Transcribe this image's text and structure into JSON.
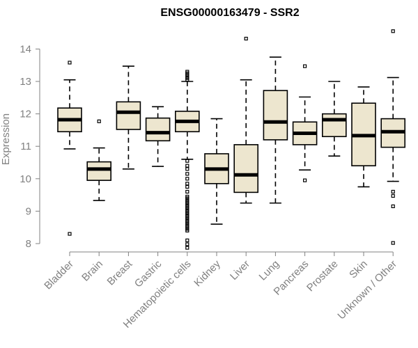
{
  "chart_data": {
    "type": "boxplot",
    "title": "ENSG00000163479 - SSR2",
    "xlabel": "",
    "ylabel": "Expression",
    "ylim": [
      7.8,
      14.7
    ],
    "yticks": [
      8,
      9,
      10,
      11,
      12,
      13,
      14
    ],
    "grid": false,
    "box_fill": "#ede6cf",
    "categories": [
      "Bladder",
      "Brain",
      "Breast",
      "Gastric",
      "Hematopoietic cells",
      "Kidney",
      "Liver",
      "Lung",
      "Pancreas",
      "Prostate",
      "Skin",
      "Unknown / Other"
    ],
    "boxes": [
      {
        "whisker_low": 10.92,
        "q1": 11.45,
        "median": 11.82,
        "q3": 12.18,
        "whisker_high": 13.05,
        "outliers": [
          13.58,
          8.3
        ]
      },
      {
        "whisker_low": 9.33,
        "q1": 9.95,
        "median": 10.3,
        "q3": 10.52,
        "whisker_high": 10.95,
        "outliers": [
          11.77
        ]
      },
      {
        "whisker_low": 10.3,
        "q1": 11.52,
        "median": 12.05,
        "q3": 12.37,
        "whisker_high": 13.47,
        "outliers": []
      },
      {
        "whisker_low": 10.38,
        "q1": 11.17,
        "median": 11.42,
        "q3": 11.87,
        "whisker_high": 12.22,
        "outliers": []
      },
      {
        "whisker_low": 10.6,
        "q1": 11.45,
        "median": 11.77,
        "q3": 12.08,
        "whisker_high": 13.0,
        "outliers": [
          13.3,
          13.25,
          13.2,
          13.15,
          13.1,
          13.05,
          10.55,
          10.4,
          10.3,
          10.15,
          10.0,
          9.85,
          9.75,
          9.6,
          9.45,
          9.4,
          9.35,
          9.3,
          9.25,
          9.2,
          9.15,
          9.1,
          9.05,
          9.0,
          8.95,
          8.9,
          8.85,
          8.8,
          8.75,
          8.7,
          8.65,
          8.6,
          8.55,
          8.5,
          8.45,
          8.4,
          8.1,
          7.98,
          7.87
        ]
      },
      {
        "whisker_low": 8.6,
        "q1": 9.85,
        "median": 10.3,
        "q3": 10.77,
        "whisker_high": 11.85,
        "outliers": []
      },
      {
        "whisker_low": 9.25,
        "q1": 9.58,
        "median": 10.12,
        "q3": 11.05,
        "whisker_high": 13.05,
        "outliers": [
          14.32
        ]
      },
      {
        "whisker_low": 9.25,
        "q1": 11.2,
        "median": 11.75,
        "q3": 12.72,
        "whisker_high": 13.75,
        "outliers": []
      },
      {
        "whisker_low": 10.27,
        "q1": 11.05,
        "median": 11.4,
        "q3": 11.75,
        "whisker_high": 12.52,
        "outliers": [
          13.47,
          9.95
        ]
      },
      {
        "whisker_low": 10.7,
        "q1": 11.3,
        "median": 11.82,
        "q3": 12.0,
        "whisker_high": 13.0,
        "outliers": []
      },
      {
        "whisker_low": 9.75,
        "q1": 10.4,
        "median": 11.33,
        "q3": 12.33,
        "whisker_high": 12.83,
        "outliers": []
      },
      {
        "whisker_low": 9.92,
        "q1": 10.97,
        "median": 11.45,
        "q3": 11.85,
        "whisker_high": 13.12,
        "outliers": [
          14.55,
          9.6,
          9.47,
          9.15,
          8.02
        ]
      }
    ]
  }
}
